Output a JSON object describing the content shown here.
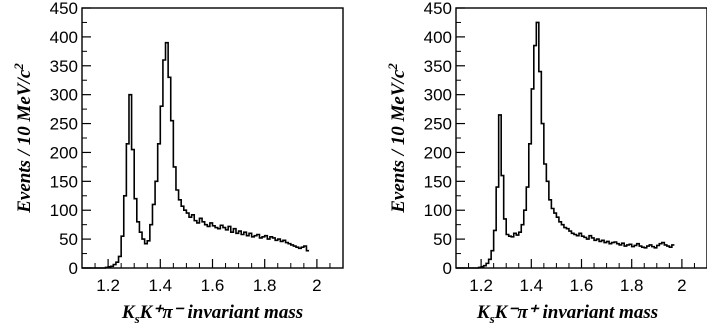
{
  "chart_data": [
    {
      "type": "bar",
      "xlabel": "K_sK⁺π⁻ invariant mass",
      "xlabel_parts": {
        "main": "K",
        "sub": "s",
        "rest": "K⁺π⁻ invariant mass"
      },
      "ylabel": "Events / 10 MeV/c²",
      "ylabel_parts": {
        "main": "Events / 10 MeV/c",
        "sup": "2"
      },
      "xlim": [
        1.1,
        2.1
      ],
      "ylim": [
        0,
        450
      ],
      "x_ticks": [
        1.2,
        1.4,
        1.6,
        1.8,
        2
      ],
      "x_tick_labels": [
        "1.2",
        "1.4",
        "1.6",
        "1.8",
        "2"
      ],
      "y_ticks": [
        0,
        50,
        100,
        150,
        200,
        250,
        300,
        350,
        400,
        450
      ],
      "y_tick_labels": [
        "0",
        "50",
        "100",
        "150",
        "200",
        "250",
        "300",
        "350",
        "400",
        "450"
      ],
      "bin_width": 0.01,
      "bin_start": 1.17,
      "values": [
        0,
        0,
        1,
        2,
        3,
        6,
        10,
        20,
        55,
        125,
        215,
        300,
        205,
        120,
        80,
        62,
        50,
        42,
        47,
        75,
        110,
        150,
        215,
        280,
        360,
        390,
        330,
        255,
        175,
        135,
        118,
        107,
        100,
        95,
        88,
        92,
        82,
        78,
        86,
        80,
        75,
        72,
        78,
        73,
        70,
        68,
        74,
        70,
        66,
        72,
        62,
        68,
        60,
        64,
        58,
        62,
        56,
        60,
        54,
        56,
        58,
        52,
        54,
        56,
        50,
        54,
        52,
        48,
        50,
        46,
        48,
        44,
        42,
        40,
        38,
        36,
        34,
        36,
        38,
        30
      ]
    },
    {
      "type": "bar",
      "xlabel": "K_sK⁻π⁺ invariant mass",
      "xlabel_parts": {
        "main": "K",
        "sub": "s",
        "rest": "K⁻π⁺ invariant mass"
      },
      "ylabel": "Events / 10 MeV/c²",
      "ylabel_parts": {
        "main": "Events / 10 MeV/c",
        "sup": "2"
      },
      "xlim": [
        1.1,
        2.1
      ],
      "ylim": [
        0,
        450
      ],
      "x_ticks": [
        1.2,
        1.4,
        1.6,
        1.8,
        2
      ],
      "x_tick_labels": [
        "1.2",
        "1.4",
        "1.6",
        "1.8",
        "2"
      ],
      "y_ticks": [
        0,
        50,
        100,
        150,
        200,
        250,
        300,
        350,
        400,
        450
      ],
      "y_tick_labels": [
        "0",
        "50",
        "100",
        "150",
        "200",
        "250",
        "300",
        "350",
        "400",
        "450"
      ],
      "bin_width": 0.01,
      "bin_start": 1.17,
      "values": [
        0,
        0,
        1,
        2,
        4,
        8,
        15,
        30,
        65,
        140,
        265,
        160,
        85,
        58,
        55,
        54,
        60,
        57,
        62,
        75,
        100,
        140,
        215,
        310,
        385,
        425,
        340,
        250,
        180,
        150,
        118,
        103,
        95,
        88,
        80,
        75,
        70,
        68,
        64,
        60,
        58,
        56,
        60,
        55,
        53,
        50,
        56,
        52,
        48,
        50,
        46,
        48,
        44,
        46,
        42,
        44,
        45,
        42,
        40,
        43,
        38,
        40,
        41,
        37,
        39,
        42,
        38,
        36,
        35,
        38,
        40,
        37,
        35,
        39,
        42,
        44,
        40,
        38,
        36,
        40
      ]
    }
  ]
}
